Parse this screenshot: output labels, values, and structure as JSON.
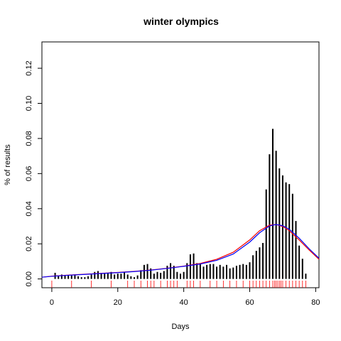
{
  "chart_data": {
    "type": "bar",
    "title": "winter olympics",
    "xlabel": "Days",
    "ylabel": "% of results",
    "xlim": [
      -3,
      81
    ],
    "ylim": [
      -0.005,
      0.135
    ],
    "x_ticks": [
      0,
      20,
      40,
      60,
      80
    ],
    "x_tick_labels": [
      "0",
      "20",
      "40",
      "60",
      "80"
    ],
    "y_ticks": [
      0.0,
      0.02,
      0.04,
      0.06,
      0.08,
      0.1,
      0.12
    ],
    "y_tick_labels": [
      "0.00",
      "0.02",
      "0.04",
      "0.06",
      "0.08",
      "0.10",
      "0.12"
    ],
    "grid": false,
    "bars": {
      "color": "#000000",
      "x": [
        1,
        2,
        3,
        4,
        5,
        6,
        7,
        8,
        9,
        10,
        11,
        12,
        13,
        14,
        15,
        16,
        17,
        18,
        19,
        20,
        21,
        22,
        23,
        24,
        25,
        26,
        27,
        28,
        29,
        30,
        31,
        32,
        33,
        34,
        35,
        36,
        37,
        38,
        39,
        40,
        41,
        42,
        43,
        44,
        45,
        46,
        47,
        48,
        49,
        50,
        51,
        52,
        53,
        54,
        55,
        56,
        57,
        58,
        59,
        60,
        61,
        62,
        63,
        64,
        65,
        66,
        67,
        68,
        69,
        70,
        71,
        72,
        73,
        74,
        75,
        76,
        77
      ],
      "values": [
        0.0035,
        0.002,
        0.0025,
        0.002,
        0.002,
        0.002,
        0.0025,
        0.0015,
        0.001,
        0.001,
        0.0015,
        0.0025,
        0.004,
        0.0045,
        0.003,
        0.003,
        0.0035,
        0.004,
        0.0025,
        0.003,
        0.003,
        0.004,
        0.0025,
        0.0015,
        0.001,
        0.002,
        0.005,
        0.008,
        0.0085,
        0.006,
        0.003,
        0.004,
        0.0035,
        0.0045,
        0.0075,
        0.009,
        0.0075,
        0.004,
        0.003,
        0.004,
        0.009,
        0.014,
        0.0145,
        0.009,
        0.0085,
        0.007,
        0.008,
        0.0085,
        0.0085,
        0.007,
        0.008,
        0.007,
        0.008,
        0.006,
        0.0065,
        0.0075,
        0.008,
        0.0085,
        0.008,
        0.0095,
        0.0135,
        0.016,
        0.018,
        0.0205,
        0.051,
        0.071,
        0.0855,
        0.073,
        0.063,
        0.059,
        0.055,
        0.054,
        0.0485,
        0.033,
        0.019,
        0.0115,
        0.003
      ]
    },
    "density_curves": [
      {
        "color": "#ff0000",
        "x": [
          -3,
          0,
          5,
          10,
          15,
          20,
          25,
          30,
          35,
          40,
          45,
          50,
          55,
          60,
          63,
          66,
          68,
          70,
          72,
          75,
          78,
          81
        ],
        "y": [
          0.001,
          0.0016,
          0.0022,
          0.0027,
          0.0032,
          0.0037,
          0.0043,
          0.0051,
          0.0061,
          0.0073,
          0.0088,
          0.0112,
          0.0152,
          0.0222,
          0.0275,
          0.0306,
          0.031,
          0.0299,
          0.0275,
          0.0222,
          0.0165,
          0.0112
        ]
      },
      {
        "color": "#0000ff",
        "x": [
          -3,
          0,
          5,
          10,
          15,
          20,
          25,
          30,
          35,
          40,
          45,
          50,
          55,
          60,
          63,
          66,
          68,
          70,
          72,
          75,
          78,
          81
        ],
        "y": [
          0.001,
          0.0015,
          0.0021,
          0.0026,
          0.0031,
          0.0036,
          0.0042,
          0.005,
          0.006,
          0.0072,
          0.0085,
          0.0106,
          0.0142,
          0.021,
          0.0263,
          0.0302,
          0.031,
          0.0303,
          0.0283,
          0.0232,
          0.0172,
          0.0118
        ]
      }
    ],
    "rug": {
      "color": "#ff0000",
      "x": [
        0,
        6,
        12,
        18,
        23,
        25,
        27,
        29,
        30,
        31,
        33,
        35,
        36,
        37,
        38,
        41,
        42,
        43,
        45,
        48,
        50,
        52,
        54,
        56,
        58,
        60,
        61,
        62,
        63,
        64,
        65,
        66,
        67,
        67.5,
        68,
        68.5,
        69,
        69.5,
        70,
        71,
        72,
        73,
        74,
        75,
        76,
        77
      ]
    }
  }
}
